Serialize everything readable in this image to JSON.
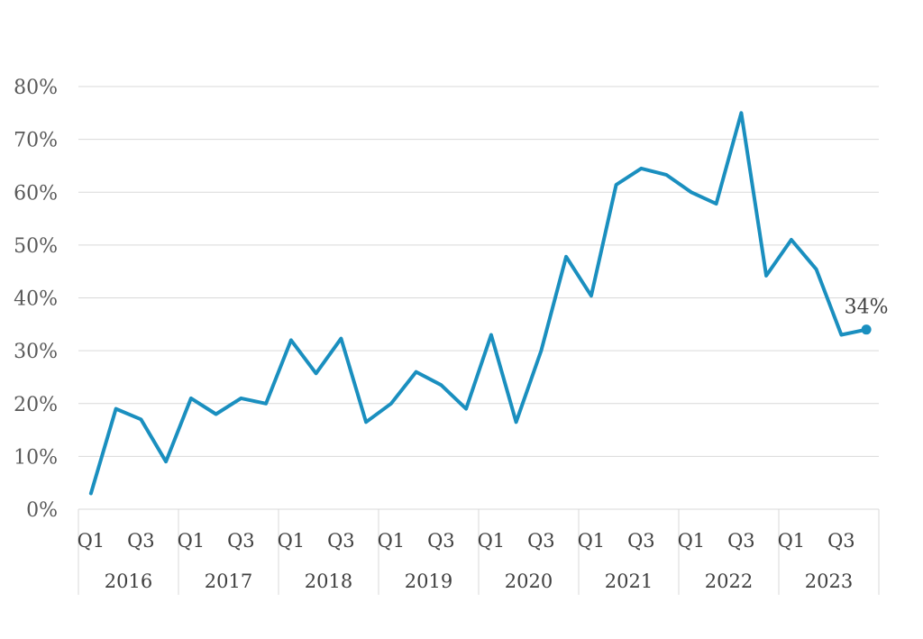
{
  "chart_data": {
    "type": "line",
    "title": "",
    "xlabel": "",
    "ylabel": "",
    "ylim": [
      0,
      80
    ],
    "y_ticks": [
      "0%",
      "10%",
      "20%",
      "30%",
      "40%",
      "50%",
      "60%",
      "70%",
      "80%"
    ],
    "grid": true,
    "legend": "none",
    "years": [
      "2016",
      "2017",
      "2018",
      "2019",
      "2020",
      "2021",
      "2022",
      "2023"
    ],
    "quarter_tick_labels": [
      "Q1",
      "Q3"
    ],
    "x": [
      "2016 Q1",
      "2016 Q2",
      "2016 Q3",
      "2016 Q4",
      "2017 Q1",
      "2017 Q2",
      "2017 Q3",
      "2017 Q4",
      "2018 Q1",
      "2018 Q2",
      "2018 Q3",
      "2018 Q4",
      "2019 Q1",
      "2019 Q2",
      "2019 Q3",
      "2019 Q4",
      "2020 Q1",
      "2020 Q2",
      "2020 Q3",
      "2020 Q4",
      "2021 Q1",
      "2021 Q2",
      "2021 Q3",
      "2021 Q4",
      "2022 Q1",
      "2022 Q2",
      "2022 Q3",
      "2022 Q4",
      "2023 Q1",
      "2023 Q2",
      "2023 Q3",
      "2023 Q4"
    ],
    "series": [
      {
        "color": "#1a8fbf",
        "values": [
          3,
          19,
          17,
          9,
          21,
          18,
          21,
          20,
          32,
          25.7,
          32.3,
          16.5,
          20,
          26,
          23.5,
          19,
          33,
          16.5,
          30,
          47.8,
          40.4,
          61.4,
          64.5,
          63.3,
          60,
          57.8,
          75,
          44.2,
          51,
          45.4,
          33,
          34
        ]
      }
    ],
    "annotations": [
      {
        "point": "2023 Q4",
        "text": "34%"
      }
    ]
  }
}
